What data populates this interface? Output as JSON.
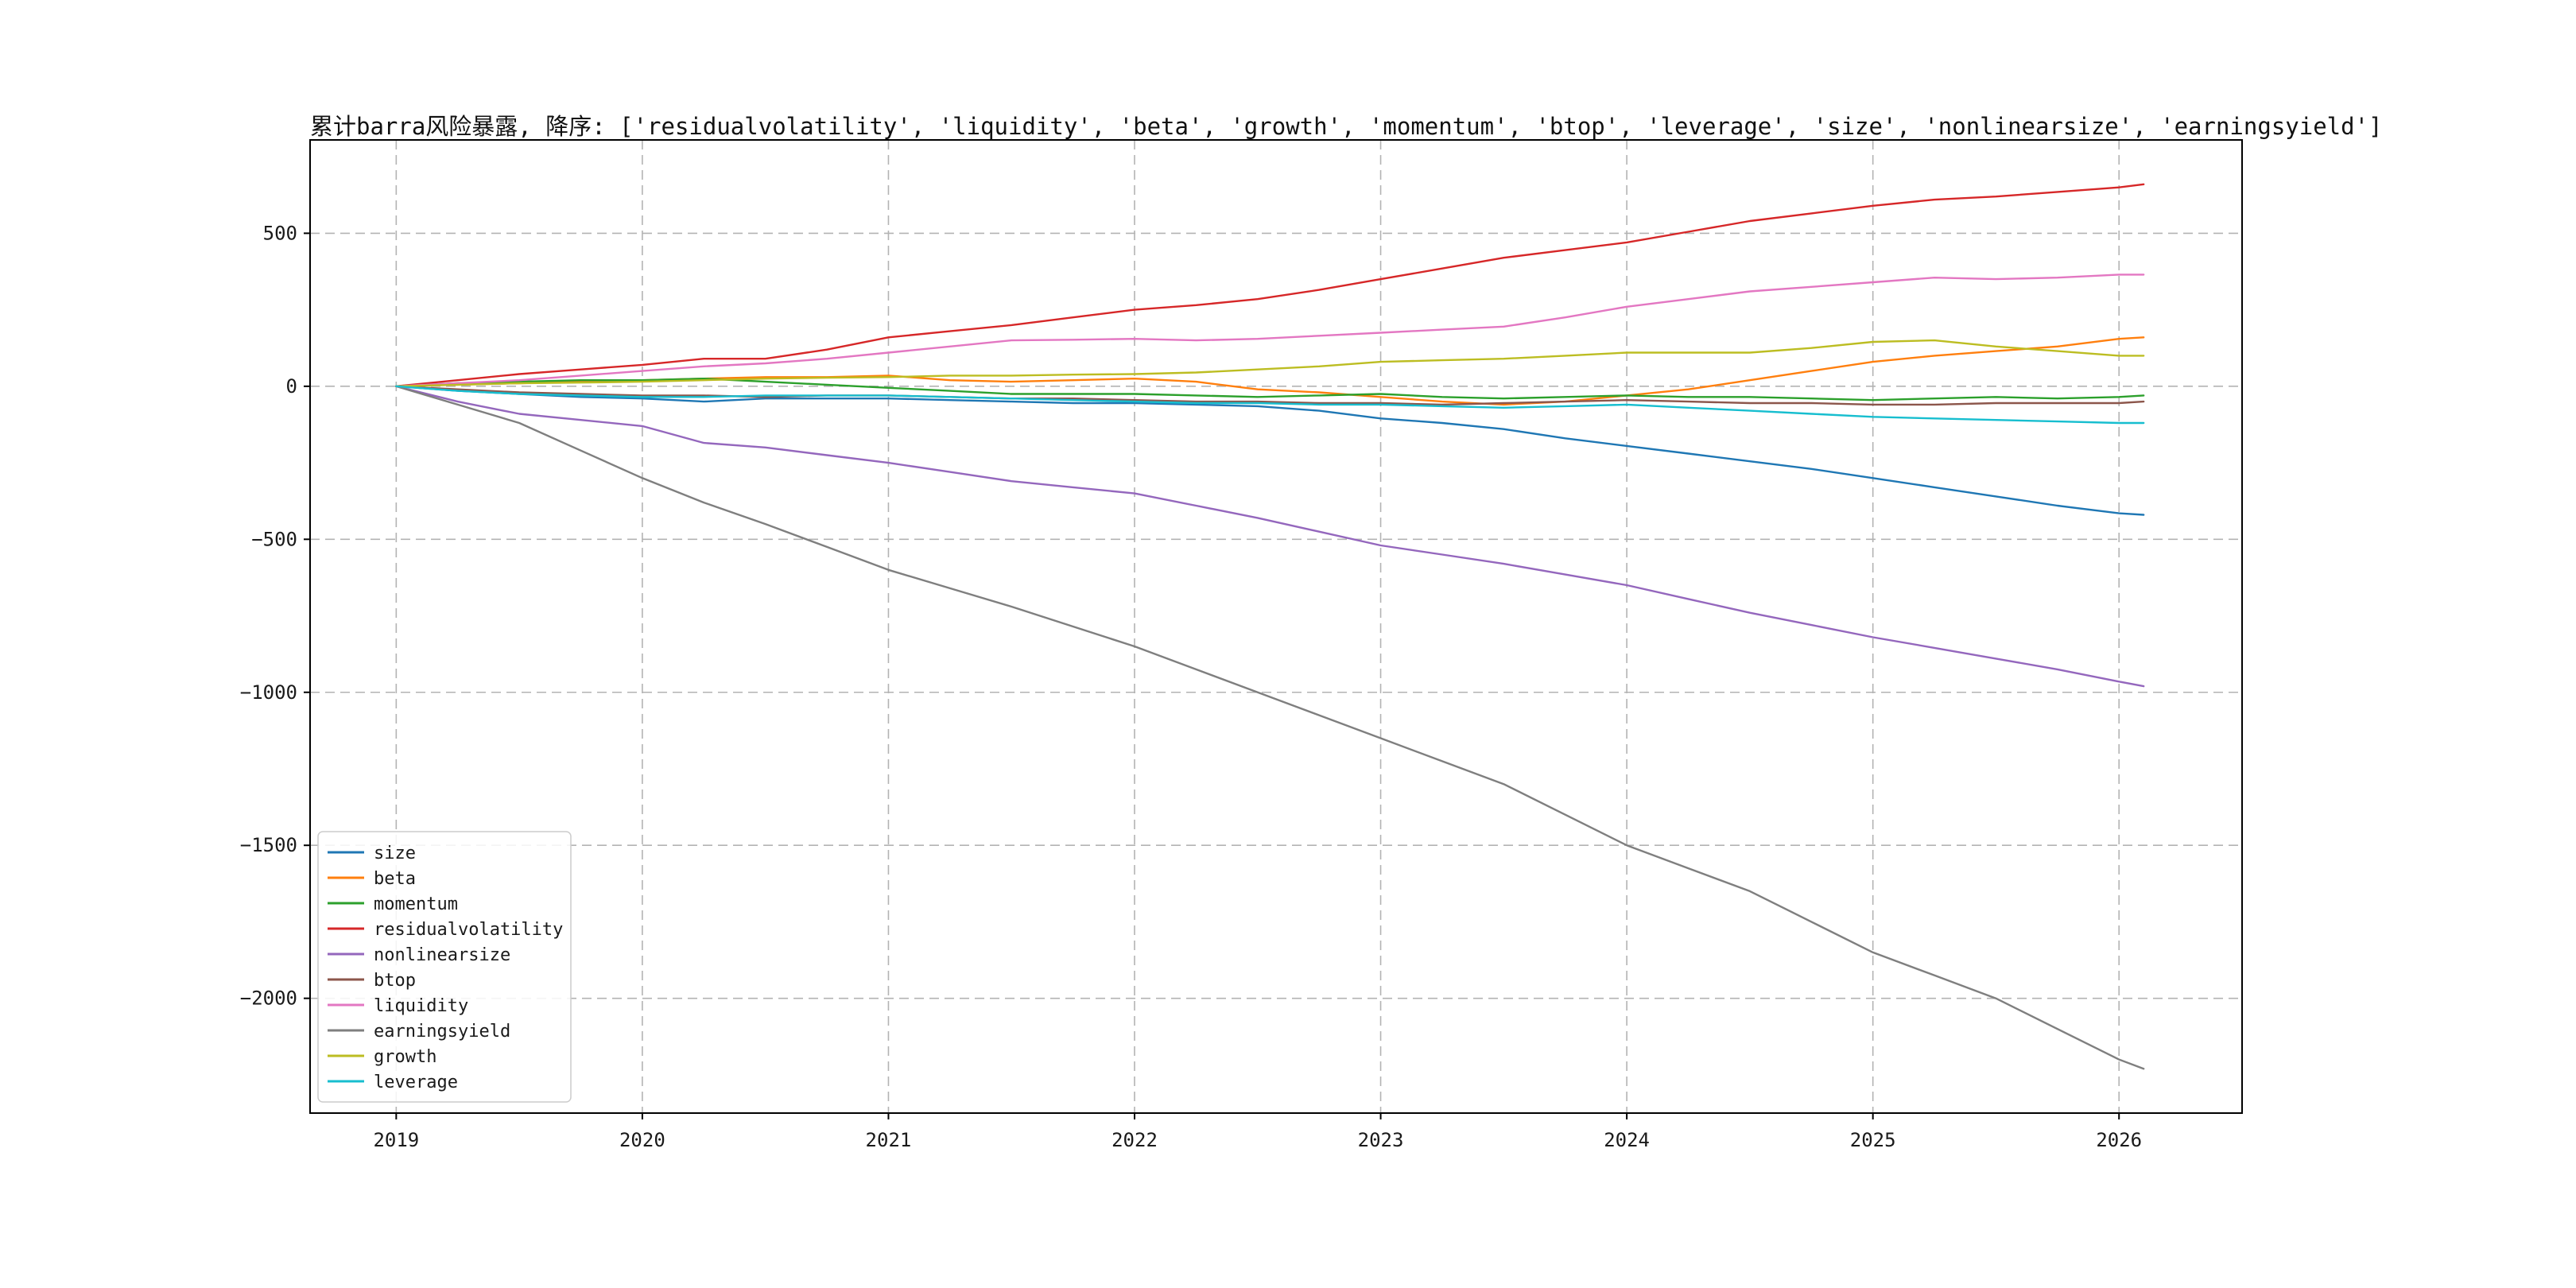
{
  "chart_data": {
    "type": "line",
    "title": "累计barra风险暴露, 降序: ['residualvolatility', 'liquidity', 'beta', 'growth', 'momentum', 'btop', 'leverage', 'size', 'nonlinearsize', 'earningsyield']",
    "xlabel": "",
    "ylabel": "",
    "xlim": [
      2018.65,
      2026.5
    ],
    "ylim": [
      -2375,
      805
    ],
    "x_ticks": [
      2019,
      2020,
      2021,
      2022,
      2023,
      2024,
      2025,
      2026
    ],
    "x_tick_labels": [
      "2019",
      "2020",
      "2021",
      "2022",
      "2023",
      "2024",
      "2025",
      "2026"
    ],
    "y_ticks": [
      500,
      0,
      -500,
      -1000,
      -1500,
      -2000
    ],
    "grid": "dashed",
    "grid_color": "#b3b3b3",
    "axes_color": "#000000",
    "legend_position": "lower left",
    "x": [
      2019,
      2019.25,
      2019.5,
      2019.75,
      2020,
      2020.25,
      2020.5,
      2020.75,
      2021,
      2021.25,
      2021.5,
      2021.75,
      2022,
      2022.25,
      2022.5,
      2022.75,
      2023,
      2023.25,
      2023.5,
      2023.75,
      2024,
      2024.25,
      2024.5,
      2024.75,
      2025,
      2025.25,
      2025.5,
      2025.75,
      2026,
      2026.1
    ],
    "series": [
      {
        "name": "size",
        "color": "#1f77b4",
        "values": [
          0,
          -15,
          -25,
          -35,
          -40,
          -50,
          -40,
          -40,
          -40,
          -45,
          -50,
          -55,
          -55,
          -60,
          -65,
          -80,
          -105,
          -120,
          -140,
          -170,
          -195,
          -220,
          -245,
          -270,
          -300,
          -330,
          -360,
          -390,
          -415,
          -420
        ]
      },
      {
        "name": "beta",
        "color": "#ff7f0e",
        "values": [
          0,
          5,
          10,
          15,
          20,
          25,
          30,
          30,
          35,
          20,
          15,
          20,
          25,
          15,
          -10,
          -20,
          -35,
          -50,
          -60,
          -50,
          -30,
          -10,
          20,
          50,
          80,
          100,
          115,
          130,
          155,
          160
        ]
      },
      {
        "name": "momentum",
        "color": "#2ca02c",
        "values": [
          0,
          10,
          15,
          20,
          20,
          25,
          15,
          5,
          -5,
          -15,
          -25,
          -25,
          -25,
          -30,
          -35,
          -30,
          -25,
          -35,
          -40,
          -35,
          -30,
          -35,
          -35,
          -40,
          -45,
          -40,
          -35,
          -40,
          -35,
          -30
        ]
      },
      {
        "name": "residualvolatility",
        "color": "#d62728",
        "values": [
          0,
          20,
          40,
          55,
          70,
          90,
          90,
          120,
          160,
          180,
          200,
          225,
          250,
          265,
          285,
          315,
          350,
          385,
          420,
          445,
          470,
          505,
          540,
          565,
          590,
          610,
          620,
          635,
          650,
          660
        ]
      },
      {
        "name": "nonlinearsize",
        "color": "#9467bd",
        "values": [
          0,
          -50,
          -90,
          -110,
          -130,
          -185,
          -200,
          -225,
          -250,
          -280,
          -310,
          -330,
          -350,
          -390,
          -430,
          -475,
          -520,
          -550,
          -580,
          -615,
          -650,
          -695,
          -740,
          -780,
          -820,
          -855,
          -890,
          -925,
          -965,
          -980
        ]
      },
      {
        "name": "btop",
        "color": "#8c564b",
        "values": [
          0,
          -10,
          -20,
          -25,
          -30,
          -30,
          -35,
          -30,
          -30,
          -35,
          -40,
          -40,
          -45,
          -50,
          -50,
          -55,
          -55,
          -60,
          -55,
          -50,
          -45,
          -50,
          -55,
          -55,
          -60,
          -60,
          -55,
          -55,
          -55,
          -50
        ]
      },
      {
        "name": "liquidity",
        "color": "#e377c2",
        "values": [
          0,
          10,
          20,
          35,
          50,
          65,
          75,
          90,
          110,
          130,
          150,
          152,
          155,
          150,
          155,
          165,
          175,
          185,
          195,
          225,
          260,
          285,
          310,
          325,
          340,
          355,
          350,
          355,
          365,
          365
        ]
      },
      {
        "name": "earningsyield",
        "color": "#7f7f7f",
        "values": [
          0,
          -60,
          -120,
          -210,
          -300,
          -380,
          -450,
          -525,
          -600,
          -660,
          -720,
          -785,
          -850,
          -925,
          -1000,
          -1075,
          -1150,
          -1225,
          -1300,
          -1400,
          -1500,
          -1575,
          -1650,
          -1750,
          -1850,
          -1925,
          -2000,
          -2100,
          -2200,
          -2230
        ]
      },
      {
        "name": "growth",
        "color": "#bcbd22",
        "values": [
          0,
          5,
          10,
          12,
          15,
          20,
          25,
          28,
          30,
          35,
          35,
          38,
          40,
          45,
          55,
          65,
          80,
          85,
          90,
          100,
          110,
          110,
          110,
          125,
          145,
          150,
          130,
          115,
          100,
          100
        ]
      },
      {
        "name": "leverage",
        "color": "#17becf",
        "values": [
          0,
          -15,
          -25,
          -30,
          -35,
          -35,
          -30,
          -30,
          -30,
          -35,
          -40,
          -45,
          -50,
          -55,
          -55,
          -60,
          -60,
          -65,
          -70,
          -65,
          -60,
          -70,
          -80,
          -90,
          -100,
          -105,
          -110,
          -115,
          -120,
          -120
        ]
      }
    ],
    "legend_labels": [
      "size",
      "beta",
      "momentum",
      "residualvolatility",
      "nonlinearsize",
      "btop",
      "liquidity",
      "earningsyield",
      "growth",
      "leverage"
    ]
  }
}
